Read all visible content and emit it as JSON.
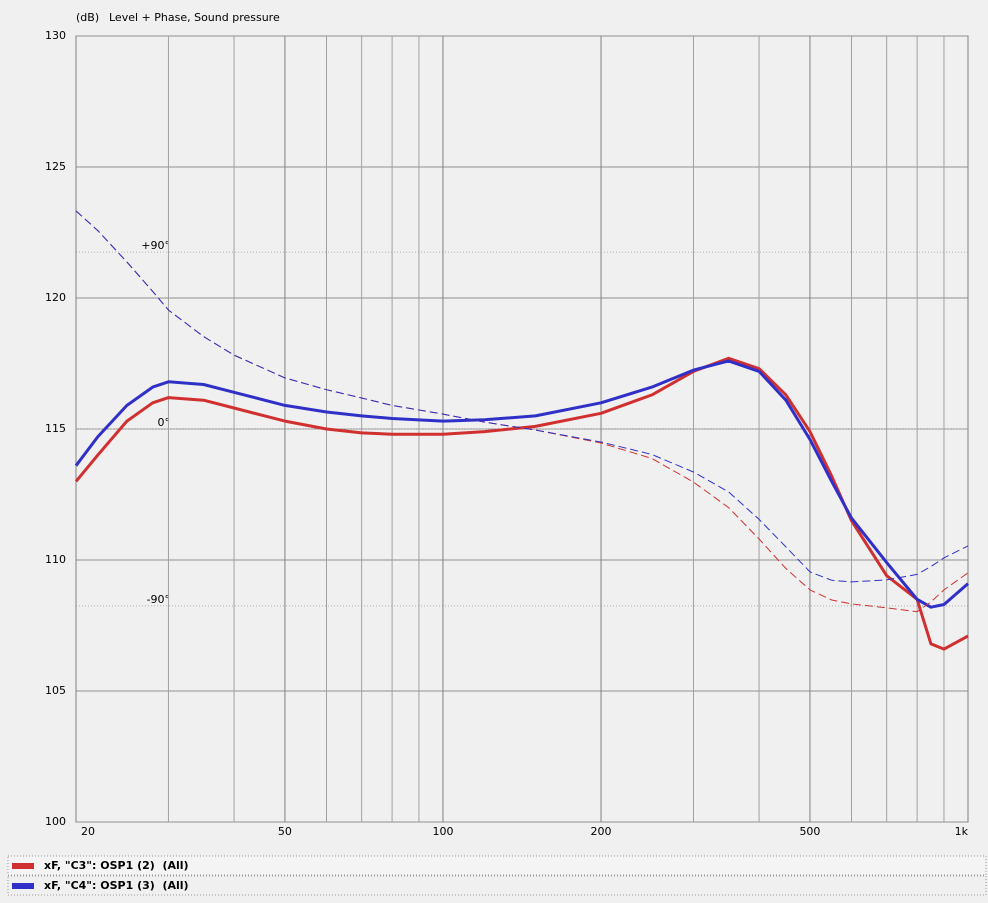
{
  "chart_data": {
    "type": "line",
    "title": "Level + Phase, Sound pressure",
    "y_label": "(dB)",
    "x_scale": "log",
    "xlim": [
      20,
      1000
    ],
    "xticks": [
      20,
      50,
      100,
      200,
      500,
      {
        "value": 1000,
        "label": "1k"
      }
    ],
    "x_minor_grid": [
      30,
      40,
      60,
      70,
      80,
      90,
      300,
      400,
      600,
      700,
      800,
      900
    ],
    "ylim": [
      100,
      130
    ],
    "yticks": [
      100,
      105,
      110,
      115,
      120,
      125,
      130
    ],
    "y2lim": [
      -200,
      200
    ],
    "y2ticks": [
      {
        "value": 90,
        "label": "+90°"
      },
      {
        "value": 0,
        "label": "0°"
      },
      {
        "value": -90,
        "label": "-90°"
      }
    ],
    "grid": true,
    "x": [
      20,
      22,
      25,
      28,
      30,
      35,
      40,
      50,
      60,
      70,
      80,
      100,
      120,
      150,
      200,
      250,
      300,
      350,
      400,
      450,
      500,
      550,
      600,
      700,
      800,
      850,
      900,
      1000
    ],
    "series": [
      {
        "name": "xF, \"C3\": OSP1 (2)  (All)",
        "color": "#d03030",
        "style": "solid",
        "values": [
          113.0,
          114.0,
          115.3,
          116.0,
          116.2,
          116.1,
          115.8,
          115.3,
          115.0,
          114.85,
          114.8,
          114.8,
          114.9,
          115.1,
          115.6,
          116.3,
          117.2,
          117.7,
          117.3,
          116.3,
          114.9,
          113.2,
          111.5,
          109.4,
          108.5,
          106.8,
          106.6,
          107.1
        ]
      },
      {
        "name": "xF, \"C4\": OSP1 (3)  (All)",
        "color": "#3030c8",
        "style": "solid",
        "values": [
          113.6,
          114.7,
          115.9,
          116.6,
          116.8,
          116.7,
          116.4,
          115.9,
          115.65,
          115.5,
          115.4,
          115.3,
          115.35,
          115.5,
          116.0,
          116.6,
          117.25,
          117.6,
          117.2,
          116.1,
          114.6,
          113.0,
          111.6,
          109.9,
          108.5,
          108.2,
          108.3,
          109.1
        ]
      },
      {
        "color": "#d03030",
        "style": "dashed",
        "axis": "y2",
        "values": [
          111,
          101,
          85,
          70,
          60.5,
          47,
          37.6,
          26,
          20,
          15.8,
          12,
          7.6,
          3.5,
          -0.5,
          -7.1,
          -15,
          -27,
          -40,
          -56,
          -71,
          -81.9,
          -87,
          -89,
          -91,
          -93,
          -88,
          -81.9,
          -73.2
        ]
      },
      {
        "color": "#3030c8",
        "style": "dashed",
        "axis": "y2",
        "values": [
          111,
          101,
          85,
          70,
          60.5,
          47,
          37.6,
          26,
          20,
          15.8,
          12,
          7.6,
          3.5,
          -0.5,
          -6.6,
          -13,
          -21.9,
          -32,
          -46,
          -60,
          -72.7,
          -77,
          -77.8,
          -76.8,
          -74,
          -70,
          -65.6,
          -59.5
        ]
      }
    ]
  }
}
